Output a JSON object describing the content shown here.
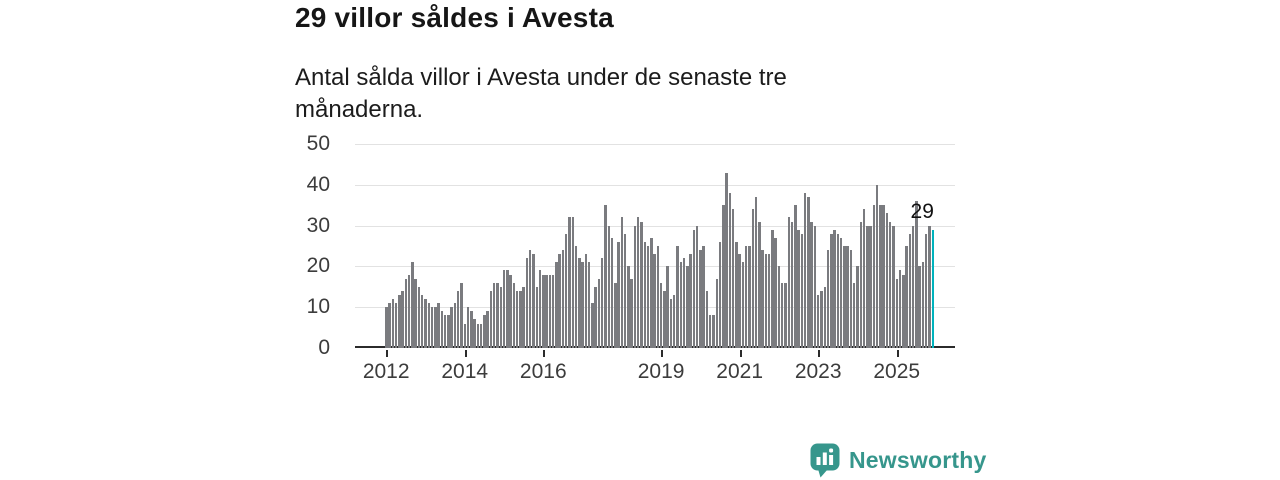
{
  "header": {
    "title": "29 villor såldes i Avesta",
    "subtitle": "Antal sålda villor i Avesta under de senaste tre månaderna."
  },
  "chart_data": {
    "type": "bar",
    "title": "29 villor såldes i Avesta",
    "xlabel": "",
    "ylabel": "",
    "start_year": 2012,
    "frequency": "monthly",
    "values": [
      10,
      11,
      12,
      11,
      13,
      14,
      17,
      18,
      21,
      17,
      15,
      13,
      12,
      11,
      10,
      10,
      11,
      9,
      8,
      8,
      10,
      11,
      14,
      16,
      6,
      10,
      9,
      7,
      6,
      6,
      8,
      9,
      14,
      16,
      16,
      15,
      19,
      19,
      18,
      16,
      14,
      14,
      15,
      22,
      24,
      23,
      15,
      19,
      18,
      18,
      18,
      18,
      21,
      23,
      24,
      28,
      32,
      32,
      25,
      22,
      21,
      23,
      21,
      11,
      15,
      17,
      22,
      35,
      30,
      27,
      16,
      26,
      32,
      28,
      20,
      17,
      30,
      32,
      31,
      26,
      25,
      27,
      23,
      25,
      16,
      14,
      20,
      12,
      13,
      25,
      21,
      22,
      20,
      23,
      29,
      30,
      24,
      25,
      14,
      8,
      8,
      17,
      26,
      35,
      43,
      38,
      34,
      26,
      23,
      21,
      25,
      25,
      34,
      37,
      31,
      24,
      23,
      23,
      29,
      27,
      20,
      16,
      16,
      32,
      31,
      35,
      29,
      28,
      38,
      37,
      31,
      30,
      13,
      14,
      15,
      24,
      28,
      29,
      28,
      27,
      25,
      25,
      24,
      16,
      20,
      31,
      34,
      30,
      30,
      35,
      40,
      35,
      35,
      33,
      31,
      30,
      17,
      19,
      18,
      25,
      28,
      30,
      36,
      20,
      21,
      28,
      30,
      29
    ],
    "highlight_last": true,
    "highlight_value_label": "29",
    "y_ticks": [
      0,
      10,
      20,
      30,
      40,
      50
    ],
    "ylim": [
      0,
      50
    ],
    "x_tick_years": [
      "2012",
      "2014",
      "2016",
      "2019",
      "2021",
      "2023",
      "2025"
    ],
    "grid": true,
    "legend_position": "none",
    "colors": {
      "bar": "#7a7b7f",
      "highlight": "#00b2bc",
      "grid": "#e2e2e2",
      "axis": "#2b2b2b",
      "tick_label": "#3c3c3c",
      "annotation": "#111111"
    }
  },
  "footer": {
    "brand": "Newsworthy",
    "brand_color": "#36968c",
    "logo_icon": "newsworthy-bar-chart-bubble-icon"
  }
}
